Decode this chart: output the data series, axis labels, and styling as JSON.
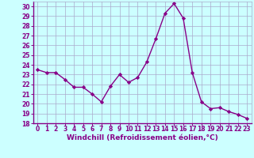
{
  "x": [
    0,
    1,
    2,
    3,
    4,
    5,
    6,
    7,
    8,
    9,
    10,
    11,
    12,
    13,
    14,
    15,
    16,
    17,
    18,
    19,
    20,
    21,
    22,
    23
  ],
  "y": [
    23.5,
    23.2,
    23.2,
    22.5,
    21.7,
    21.7,
    21.0,
    20.2,
    21.8,
    23.0,
    22.2,
    22.7,
    24.3,
    26.7,
    29.3,
    30.3,
    28.8,
    23.2,
    20.2,
    19.5,
    19.6,
    19.2,
    18.9,
    18.5
  ],
  "line_color": "#880088",
  "marker": "D",
  "marker_size": 2.2,
  "linewidth": 1.0,
  "xlabel": "Windchill (Refroidissement éolien,°C)",
  "xlabel_fontsize": 6.5,
  "xlim": [
    -0.5,
    23.5
  ],
  "ylim": [
    18,
    30.5
  ],
  "yticks": [
    18,
    19,
    20,
    21,
    22,
    23,
    24,
    25,
    26,
    27,
    28,
    29,
    30
  ],
  "xticks": [
    0,
    1,
    2,
    3,
    4,
    5,
    6,
    7,
    8,
    9,
    10,
    11,
    12,
    13,
    14,
    15,
    16,
    17,
    18,
    19,
    20,
    21,
    22,
    23
  ],
  "bg_color": "#ccffff",
  "grid_color": "#aaaacc",
  "tick_color": "#880088",
  "tick_fontsize": 5.5,
  "xlabel_color": "#880088"
}
